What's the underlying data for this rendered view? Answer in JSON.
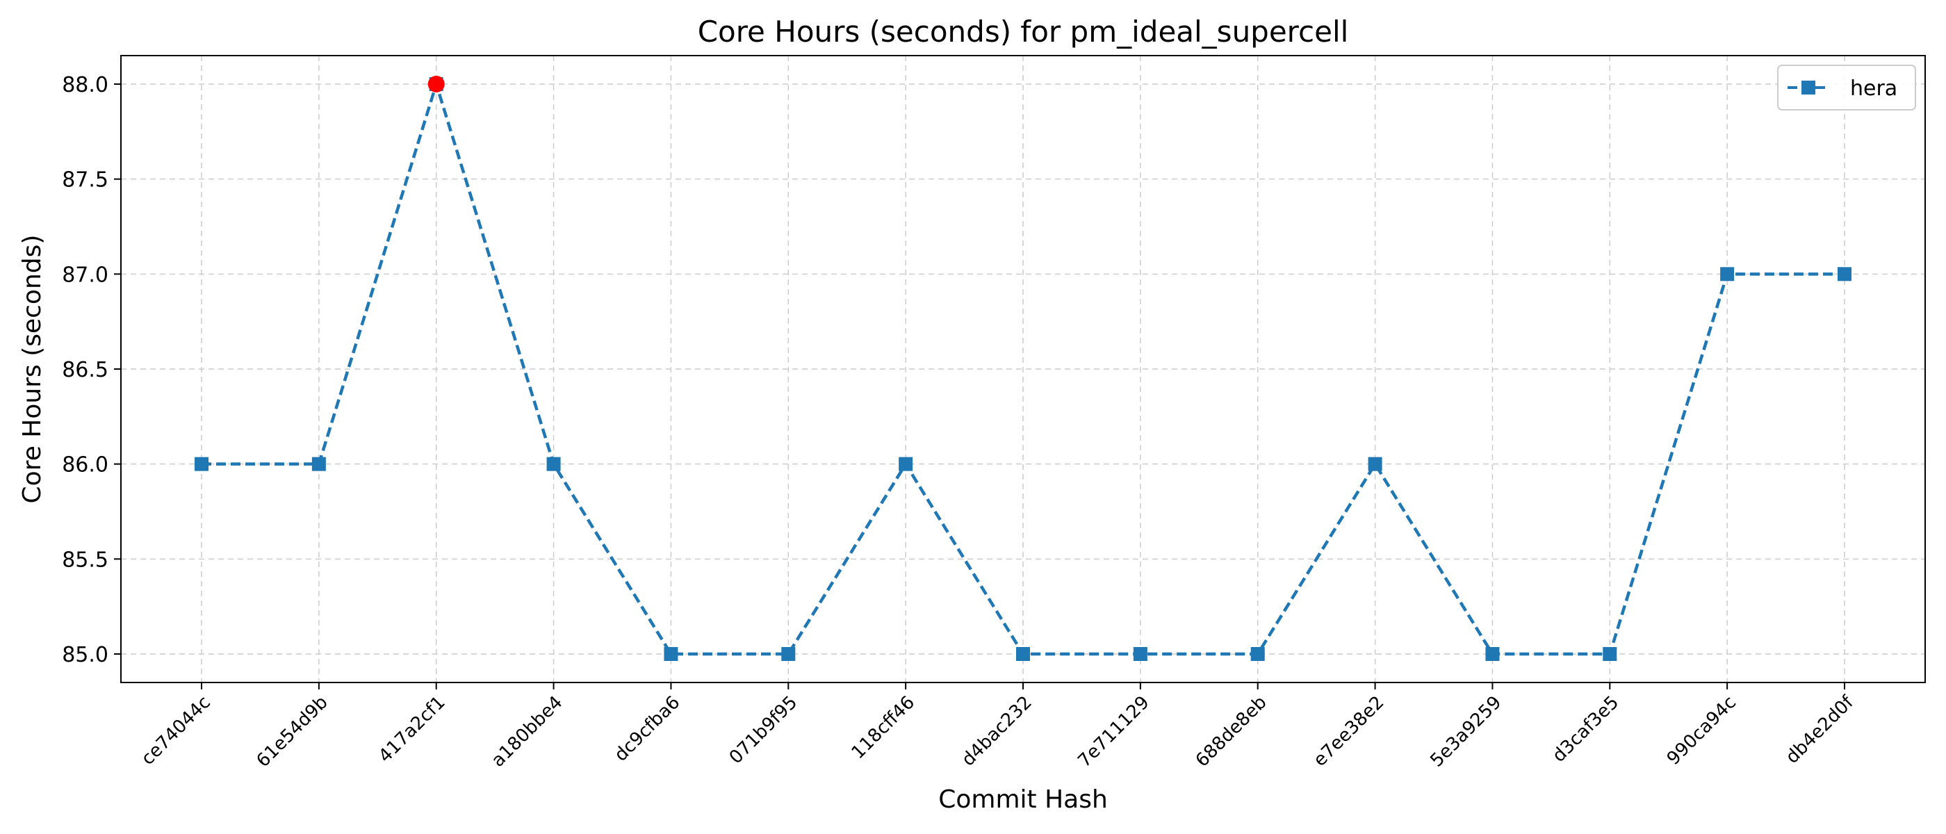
{
  "chart_data": {
    "type": "line",
    "title": "Core Hours (seconds) for pm_ideal_supercell",
    "xlabel": "Commit Hash",
    "ylabel": "Core Hours (seconds)",
    "categories": [
      "ce74044c",
      "61e54d9b",
      "417a2cf1",
      "a180bbe4",
      "dc9cfba6",
      "071b9f95",
      "118cff46",
      "d4bac232",
      "7e711129",
      "688de8eb",
      "e7ee38e2",
      "5e3a9259",
      "d3caf3e5",
      "990ca94c",
      "db4e2d0f"
    ],
    "series": [
      {
        "name": "hera",
        "values": [
          86.0,
          86.0,
          88.0,
          86.0,
          85.0,
          85.0,
          86.0,
          85.0,
          85.0,
          85.0,
          86.0,
          85.0,
          85.0,
          87.0,
          87.0
        ],
        "color": "#1f77b4",
        "line_style": "dashed",
        "marker": "square"
      }
    ],
    "highlight": {
      "category": "417a2cf1",
      "value": 88.0,
      "color": "#ff0000",
      "marker": "circle"
    },
    "ylim": [
      84.85,
      88.15
    ],
    "yticks": [
      "85.0",
      "85.5",
      "86.0",
      "86.5",
      "87.0",
      "87.5",
      "88.0"
    ],
    "grid": true,
    "legend": "top-right"
  }
}
